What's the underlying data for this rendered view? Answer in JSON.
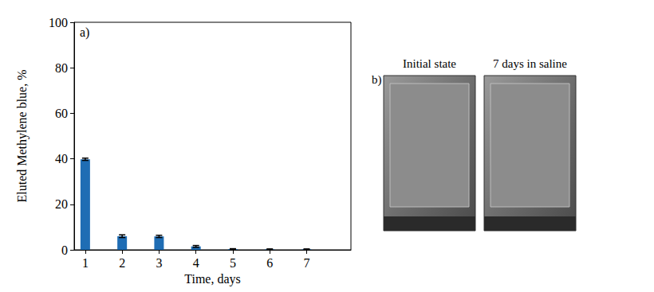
{
  "chart_data": {
    "type": "bar",
    "title": "a)",
    "x": [
      1,
      2,
      3,
      4,
      5,
      6,
      7
    ],
    "values": [
      39.8,
      6.0,
      5.9,
      1.5,
      0.3,
      0.2,
      0.2
    ],
    "errors": [
      0.5,
      0.6,
      0.5,
      0.4,
      0.2,
      0.2,
      0.2
    ],
    "color": "#1f6db4",
    "xlabel": "Time, days",
    "ylabel": "Eluted Methylene blue, %",
    "xlim": [
      0.7,
      8.2
    ],
    "xticks": [
      1,
      2,
      3,
      4,
      5,
      6,
      7
    ],
    "ylim": [
      0,
      100
    ],
    "yticks": [
      0,
      20,
      40,
      60,
      80,
      100
    ],
    "grid": false
  },
  "panel_b": {
    "label": "b)",
    "images": [
      {
        "title": "Initial state"
      },
      {
        "title": "7 days in saline"
      }
    ]
  }
}
